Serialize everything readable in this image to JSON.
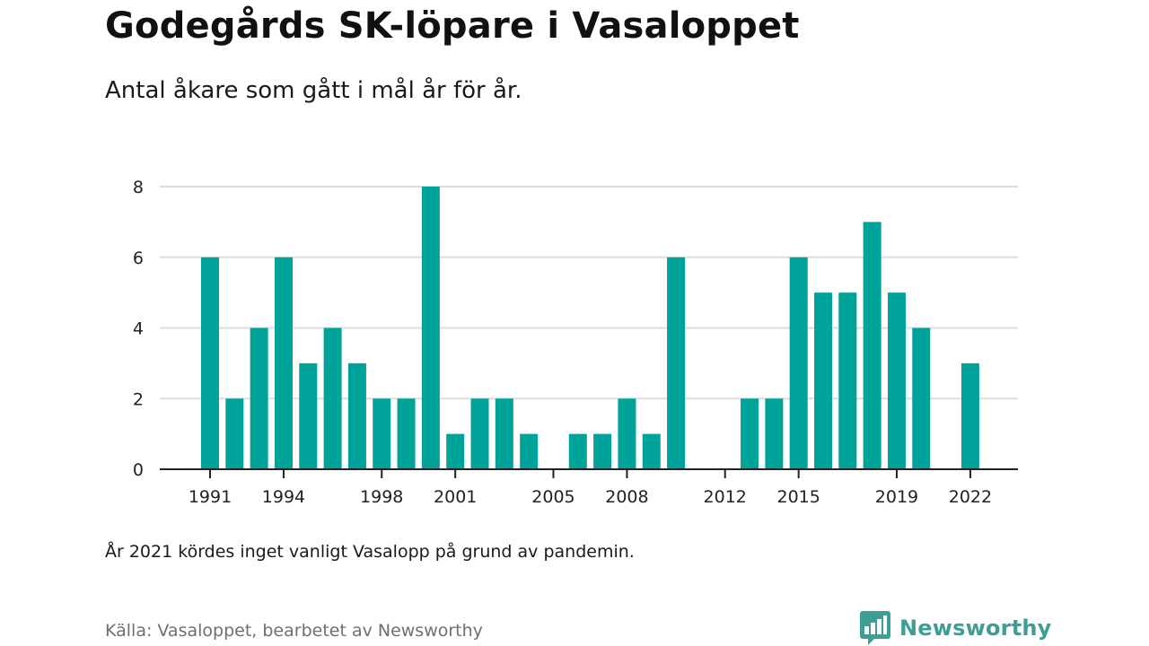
{
  "title": "Godegårds SK-löpare i Vasaloppet",
  "subtitle": "Antal åkare som gått i mål år för år.",
  "note": "År 2021 kördes inget vanligt Vasalopp på grund av pandemin.",
  "source": "Källa: Vasaloppet, bearbetet av Newsworthy",
  "brand": {
    "name": "Newsworthy",
    "icon": "newsworthy-logo-icon",
    "color": "#3d9e95"
  },
  "colors": {
    "bar": "#00a39a",
    "grid": "#dddddd",
    "axis": "#222222"
  },
  "chart_data": {
    "type": "bar",
    "x": [
      1991,
      1992,
      1993,
      1994,
      1995,
      1996,
      1997,
      1998,
      1999,
      2000,
      2001,
      2002,
      2003,
      2004,
      2005,
      2006,
      2007,
      2008,
      2009,
      2010,
      2011,
      2012,
      2013,
      2014,
      2015,
      2016,
      2017,
      2018,
      2019,
      2020,
      2021,
      2022
    ],
    "values": [
      6,
      2,
      4,
      6,
      3,
      4,
      3,
      2,
      2,
      8,
      1,
      2,
      2,
      1,
      0,
      1,
      1,
      2,
      1,
      6,
      0,
      0,
      2,
      2,
      6,
      5,
      5,
      7,
      5,
      4,
      null,
      3
    ],
    "x_ticks": [
      1991,
      1994,
      1998,
      2001,
      2005,
      2008,
      2012,
      2015,
      2019,
      2022
    ],
    "y_ticks": [
      0,
      2,
      4,
      6,
      8
    ],
    "ylim": [
      0,
      8
    ],
    "xlabel": "",
    "ylabel": "",
    "grid": true
  }
}
